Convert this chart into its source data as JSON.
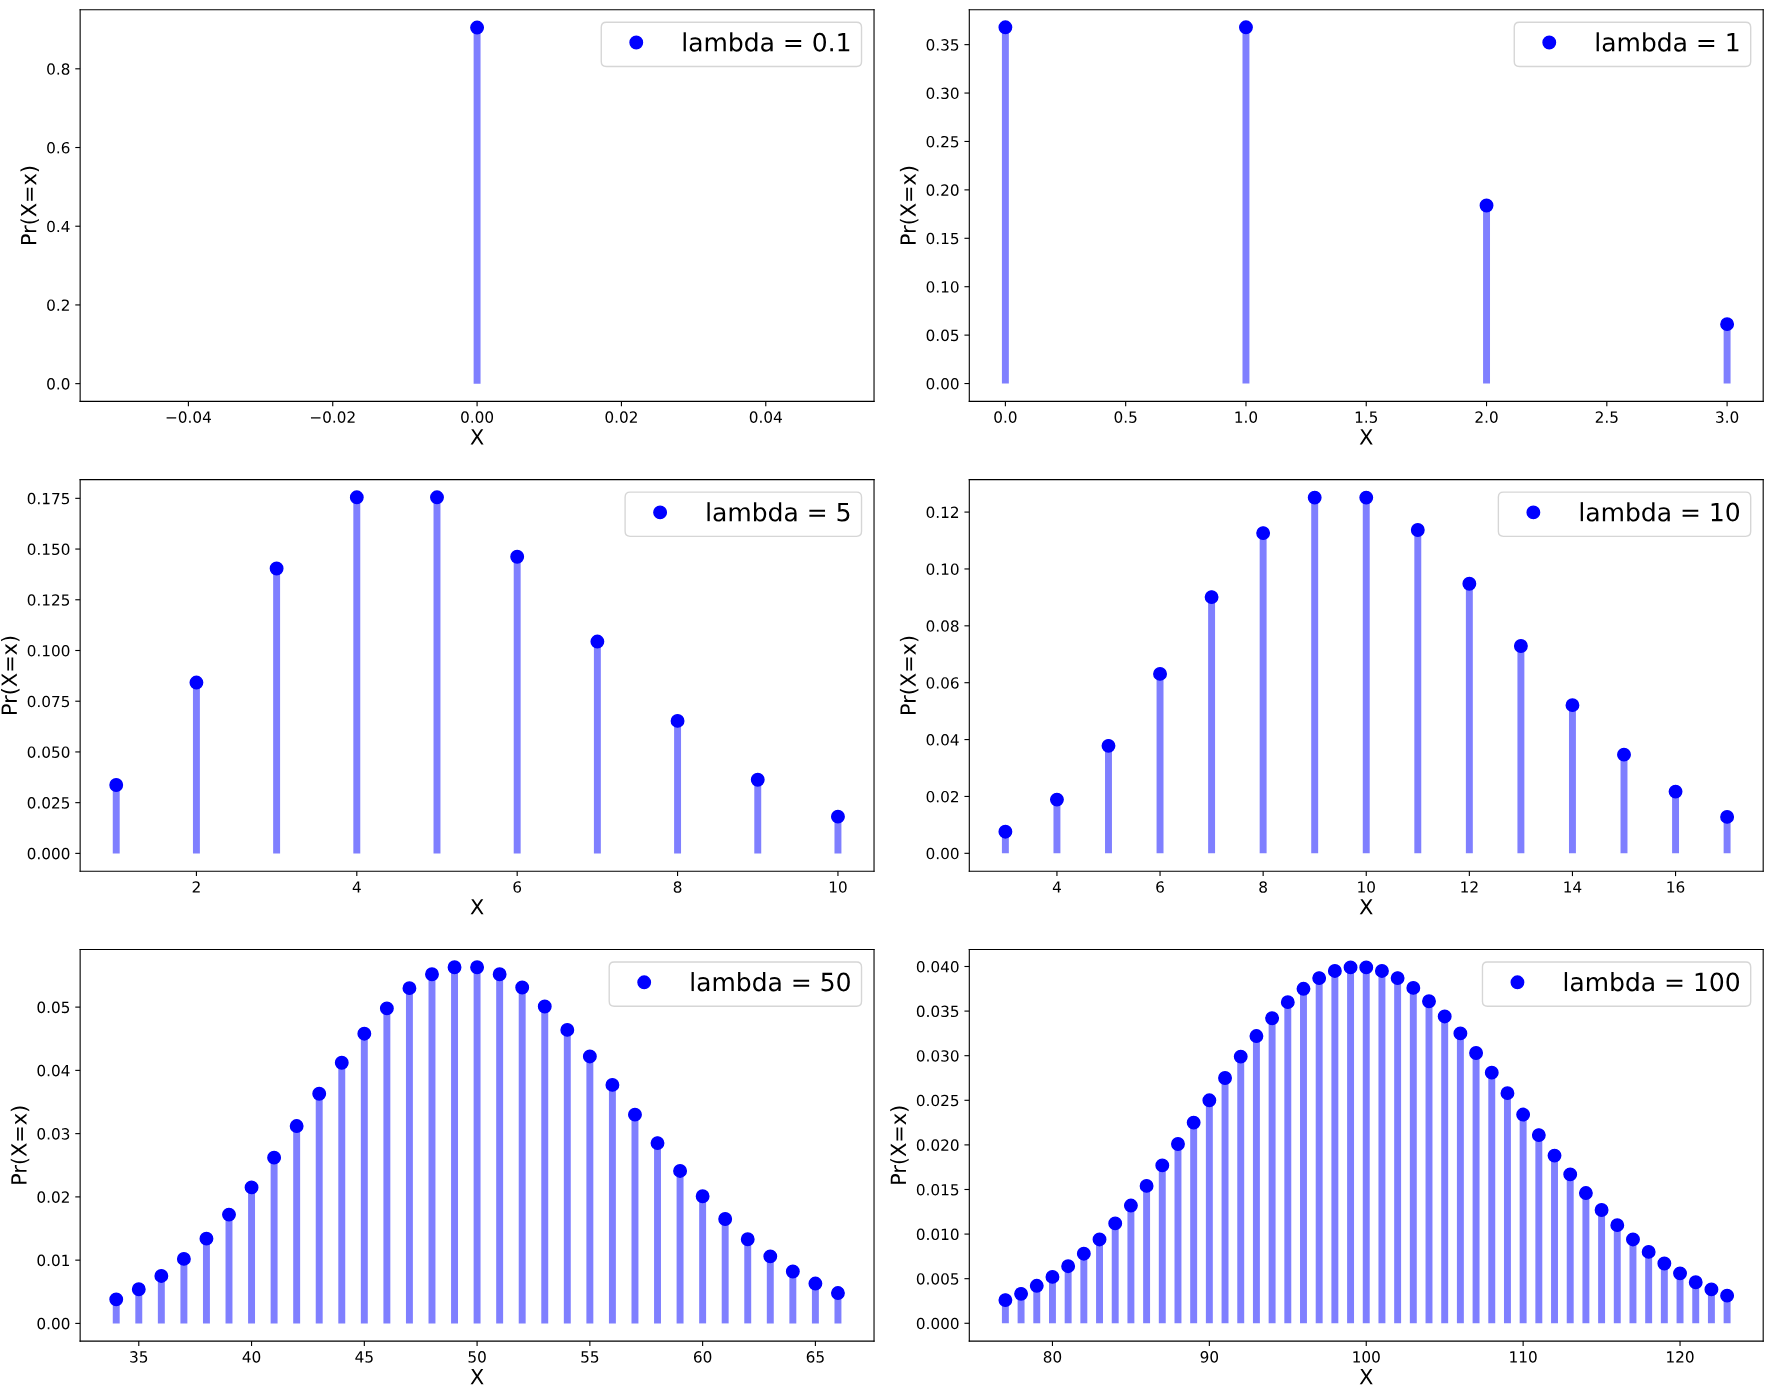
{
  "chart_data": [
    {
      "type": "lollipop",
      "xlabel": "X",
      "ylabel": "Pr(X=x)",
      "legend": "top right",
      "marker": "circle",
      "x": [
        0
      ],
      "series": [
        {
          "name": "lambda = 0.1",
          "color": "#0000ff",
          "values": [
            0.9048
          ]
        }
      ],
      "xlim": [
        -0.055,
        0.055
      ],
      "ylim": [
        -0.045,
        0.95
      ],
      "xticks": [
        {
          "value": -0.04,
          "label": "−0.04"
        },
        {
          "value": -0.02,
          "label": "−0.02"
        },
        {
          "value": 0,
          "label": "0.00"
        },
        {
          "value": 0.02,
          "label": "0.02"
        },
        {
          "value": 0.04,
          "label": "0.04"
        }
      ],
      "yticks": [
        {
          "value": 0,
          "label": "0.0"
        },
        {
          "value": 0.2,
          "label": "0.2"
        },
        {
          "value": 0.4,
          "label": "0.4"
        },
        {
          "value": 0.6,
          "label": "0.6"
        },
        {
          "value": 0.8,
          "label": "0.8"
        }
      ]
    },
    {
      "type": "lollipop",
      "xlabel": "X",
      "ylabel": "Pr(X=x)",
      "legend": "top right",
      "marker": "circle",
      "x": [
        0,
        1,
        2,
        3
      ],
      "series": [
        {
          "name": "lambda = 1",
          "color": "#0000ff",
          "values": [
            0.3679,
            0.3679,
            0.1839,
            0.0613
          ]
        }
      ],
      "xlim": [
        -0.15,
        3.15
      ],
      "ylim": [
        -0.0184,
        0.386
      ],
      "xticks": [
        {
          "value": 0,
          "label": "0.0"
        },
        {
          "value": 0.5,
          "label": "0.5"
        },
        {
          "value": 1,
          "label": "1.0"
        },
        {
          "value": 1.5,
          "label": "1.5"
        },
        {
          "value": 2,
          "label": "2.0"
        },
        {
          "value": 2.5,
          "label": "2.5"
        },
        {
          "value": 3,
          "label": "3.0"
        }
      ],
      "yticks": [
        {
          "value": 0,
          "label": "0.00"
        },
        {
          "value": 0.05,
          "label": "0.05"
        },
        {
          "value": 0.1,
          "label": "0.10"
        },
        {
          "value": 0.15,
          "label": "0.15"
        },
        {
          "value": 0.2,
          "label": "0.20"
        },
        {
          "value": 0.25,
          "label": "0.25"
        },
        {
          "value": 0.3,
          "label": "0.30"
        },
        {
          "value": 0.35,
          "label": "0.35"
        }
      ]
    },
    {
      "type": "lollipop",
      "xlabel": "X",
      "ylabel": "Pr(X=x)",
      "legend": "top right",
      "marker": "circle",
      "x": [
        1,
        2,
        3,
        4,
        5,
        6,
        7,
        8,
        9,
        10
      ],
      "series": [
        {
          "name": "lambda = 5",
          "color": "#0000ff",
          "values": [
            0.0337,
            0.0842,
            0.1404,
            0.1755,
            0.1755,
            0.1462,
            0.1044,
            0.0653,
            0.0363,
            0.0181
          ]
        }
      ],
      "xlim": [
        0.55,
        10.45
      ],
      "ylim": [
        -0.0088,
        0.1842
      ],
      "xticks": [
        2,
        4,
        6,
        8,
        10
      ],
      "yticks": [
        {
          "value": 0,
          "label": "0.000"
        },
        {
          "value": 0.025,
          "label": "0.025"
        },
        {
          "value": 0.05,
          "label": "0.050"
        },
        {
          "value": 0.075,
          "label": "0.075"
        },
        {
          "value": 0.1,
          "label": "0.100"
        },
        {
          "value": 0.125,
          "label": "0.125"
        },
        {
          "value": 0.15,
          "label": "0.150"
        },
        {
          "value": 0.175,
          "label": "0.175"
        }
      ]
    },
    {
      "type": "lollipop",
      "xlabel": "X",
      "ylabel": "Pr(X=x)",
      "legend": "top right",
      "marker": "circle",
      "x": [
        3,
        4,
        5,
        6,
        7,
        8,
        9,
        10,
        11,
        12,
        13,
        14,
        15,
        16,
        17
      ],
      "series": [
        {
          "name": "lambda = 10",
          "color": "#0000ff",
          "values": [
            0.0076,
            0.0189,
            0.0378,
            0.0631,
            0.0901,
            0.1126,
            0.1251,
            0.1251,
            0.1137,
            0.0948,
            0.0729,
            0.0521,
            0.0347,
            0.0217,
            0.0128
          ]
        }
      ],
      "xlim": [
        2.3,
        17.7
      ],
      "ylim": [
        -0.0063,
        0.1314
      ],
      "xticks": [
        4,
        6,
        8,
        10,
        12,
        14,
        16
      ],
      "yticks": [
        {
          "value": 0,
          "label": "0.00"
        },
        {
          "value": 0.02,
          "label": "0.02"
        },
        {
          "value": 0.04,
          "label": "0.04"
        },
        {
          "value": 0.06,
          "label": "0.06"
        },
        {
          "value": 0.08,
          "label": "0.08"
        },
        {
          "value": 0.1,
          "label": "0.10"
        },
        {
          "value": 0.12,
          "label": "0.12"
        }
      ]
    },
    {
      "type": "lollipop",
      "xlabel": "X",
      "ylabel": "Pr(X=x)",
      "legend": "top right",
      "marker": "circle",
      "x": [
        34,
        35,
        36,
        37,
        38,
        39,
        40,
        41,
        42,
        43,
        44,
        45,
        46,
        47,
        48,
        49,
        50,
        51,
        52,
        53,
        54,
        55,
        56,
        57,
        58,
        59,
        60,
        61,
        62,
        63,
        64,
        65,
        66
      ],
      "series": [
        {
          "name": "lambda = 50",
          "color": "#0000ff",
          "values": [
            0.0038,
            0.0054,
            0.0075,
            0.0102,
            0.0134,
            0.0172,
            0.0215,
            0.0262,
            0.0312,
            0.0363,
            0.0412,
            0.0458,
            0.0498,
            0.053,
            0.0552,
            0.0563,
            0.0563,
            0.0552,
            0.0531,
            0.0501,
            0.0464,
            0.0422,
            0.0377,
            0.033,
            0.0285,
            0.0241,
            0.0201,
            0.0165,
            0.0133,
            0.0106,
            0.0082,
            0.0063,
            0.0048
          ]
        }
      ],
      "xlim": [
        32.4,
        67.6
      ],
      "ylim": [
        -0.0028,
        0.0591
      ],
      "xticks": [
        35,
        40,
        45,
        50,
        55,
        60,
        65
      ],
      "yticks": [
        {
          "value": 0,
          "label": "0.00"
        },
        {
          "value": 0.01,
          "label": "0.01"
        },
        {
          "value": 0.02,
          "label": "0.02"
        },
        {
          "value": 0.03,
          "label": "0.03"
        },
        {
          "value": 0.04,
          "label": "0.04"
        },
        {
          "value": 0.05,
          "label": "0.05"
        }
      ]
    },
    {
      "type": "lollipop",
      "xlabel": "X",
      "ylabel": "Pr(X=x)",
      "legend": "top right",
      "marker": "circle",
      "x": [
        77,
        78,
        79,
        80,
        81,
        82,
        83,
        84,
        85,
        86,
        87,
        88,
        89,
        90,
        91,
        92,
        93,
        94,
        95,
        96,
        97,
        98,
        99,
        100,
        101,
        102,
        103,
        104,
        105,
        106,
        107,
        108,
        109,
        110,
        111,
        112,
        113,
        114,
        115,
        116,
        117,
        118,
        119,
        120,
        121,
        122,
        123
      ],
      "series": [
        {
          "name": "lambda = 100",
          "color": "#0000ff",
          "values": [
            0.0026,
            0.0033,
            0.0042,
            0.0052,
            0.0064,
            0.0078,
            0.0094,
            0.0112,
            0.0132,
            0.0154,
            0.0177,
            0.0201,
            0.0225,
            0.025,
            0.0275,
            0.0299,
            0.0322,
            0.0342,
            0.036,
            0.0375,
            0.0387,
            0.0395,
            0.0399,
            0.0399,
            0.0395,
            0.0387,
            0.0376,
            0.0361,
            0.0344,
            0.0325,
            0.0303,
            0.0281,
            0.0258,
            0.0234,
            0.0211,
            0.0188,
            0.0167,
            0.0146,
            0.0127,
            0.011,
            0.0094,
            0.008,
            0.0067,
            0.0056,
            0.0046,
            0.0038,
            0.0031
          ]
        }
      ],
      "xlim": [
        74.7,
        125.3
      ],
      "ylim": [
        -0.002,
        0.0419
      ],
      "xticks": [
        80,
        90,
        100,
        110,
        120
      ],
      "yticks": [
        {
          "value": 0,
          "label": "0.000"
        },
        {
          "value": 0.005,
          "label": "0.005"
        },
        {
          "value": 0.01,
          "label": "0.010"
        },
        {
          "value": 0.015,
          "label": "0.015"
        },
        {
          "value": 0.02,
          "label": "0.020"
        },
        {
          "value": 0.025,
          "label": "0.025"
        },
        {
          "value": 0.03,
          "label": "0.030"
        },
        {
          "value": 0.035,
          "label": "0.035"
        },
        {
          "value": 0.04,
          "label": "0.040"
        }
      ]
    }
  ]
}
